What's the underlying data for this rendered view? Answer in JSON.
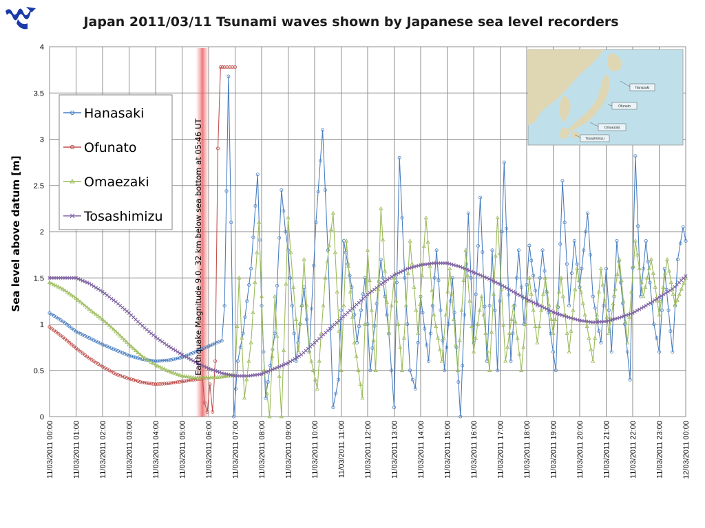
{
  "logo": {
    "icon": "wave-logo-icon",
    "color": "#1a3aa8"
  },
  "chart_data": {
    "type": "line",
    "title": "Japan 2011/03/11 Tsunami waves shown by Japanese sea level recorders",
    "ylabel": "Sea level above datum [m]",
    "xlabel": "",
    "ylim": [
      0,
      4
    ],
    "yticks": [
      "0",
      "0.5",
      "1",
      "1.5",
      "2",
      "2.5",
      "3",
      "3.5",
      "4"
    ],
    "xticks": [
      "11/03/2011 00:00",
      "11/03/2011 01:00",
      "11/03/2011 02:00",
      "11/03/2011 03:00",
      "11/03/2011 04:00",
      "11/03/2011 05:00",
      "11/03/2011 06:00",
      "11/03/2011 07:00",
      "11/03/2011 08:00",
      "11/03/2011 09:00",
      "11/03/2011 10:00",
      "11/03/2011 11:00",
      "11/03/2011 12:00",
      "11/03/2011 13:00",
      "11/03/2011 14:00",
      "11/03/2011 15:00",
      "11/03/2011 16:00",
      "11/03/2011 17:00",
      "11/03/2011 18:00",
      "11/03/2011 19:00",
      "11/03/2011 20:00",
      "11/03/2011 21:00",
      "11/03/2011 22:00",
      "11/03/2011 23:00",
      "12/03/2011 00:00"
    ],
    "x_unit": "hours since 11/03/2011 00:00",
    "grid": true,
    "legend_position": "upper-left",
    "annotation": {
      "text": "Earthquake Magnitude 9.0, 32 km below sea bottom at 05:46 UT",
      "x_hour": 5.77
    },
    "series": [
      {
        "name": "Hanasaki",
        "color": "#4a7fc1",
        "marker": "circle",
        "points": [
          [
            0,
            1.12
          ],
          [
            0.5,
            1.03
          ],
          [
            1,
            0.92
          ],
          [
            1.5,
            0.85
          ],
          [
            2,
            0.78
          ],
          [
            2.5,
            0.72
          ],
          [
            3,
            0.66
          ],
          [
            3.5,
            0.62
          ],
          [
            4,
            0.6
          ],
          [
            4.5,
            0.61
          ],
          [
            5,
            0.64
          ],
          [
            5.5,
            0.7
          ],
          [
            6,
            0.76
          ],
          [
            6.3,
            0.8
          ],
          [
            6.5,
            0.82
          ],
          [
            6.6,
            1.2
          ],
          [
            6.75,
            3.68
          ],
          [
            6.85,
            2.1
          ],
          [
            6.95,
            0.0
          ],
          [
            7.1,
            0.6
          ],
          [
            7.3,
            0.9
          ],
          [
            7.6,
            1.6
          ],
          [
            7.85,
            2.62
          ],
          [
            8.0,
            1.2
          ],
          [
            8.15,
            0.2
          ],
          [
            8.5,
            0.9
          ],
          [
            8.75,
            2.45
          ],
          [
            8.9,
            2.0
          ],
          [
            9.0,
            1.8
          ],
          [
            9.3,
            0.6
          ],
          [
            9.6,
            1.4
          ],
          [
            9.8,
            0.7
          ],
          [
            10.05,
            2.1
          ],
          [
            10.3,
            3.1
          ],
          [
            10.5,
            1.8
          ],
          [
            10.7,
            0.1
          ],
          [
            10.9,
            0.4
          ],
          [
            11.1,
            1.9
          ],
          [
            11.4,
            1.4
          ],
          [
            11.6,
            0.8
          ],
          [
            11.9,
            1.5
          ],
          [
            12.1,
            0.5
          ],
          [
            12.5,
            1.7
          ],
          [
            12.8,
            0.9
          ],
          [
            13.0,
            0.1
          ],
          [
            13.2,
            2.8
          ],
          [
            13.4,
            1.5
          ],
          [
            13.6,
            0.5
          ],
          [
            13.8,
            0.3
          ],
          [
            14.0,
            1.3
          ],
          [
            14.3,
            0.6
          ],
          [
            14.6,
            1.8
          ],
          [
            14.9,
            0.5
          ],
          [
            15.2,
            1.5
          ],
          [
            15.5,
            0.0
          ],
          [
            15.8,
            2.2
          ],
          [
            16.0,
            0.8
          ],
          [
            16.25,
            2.37
          ],
          [
            16.5,
            0.6
          ],
          [
            16.7,
            1.8
          ],
          [
            16.9,
            0.5
          ],
          [
            17.15,
            2.75
          ],
          [
            17.4,
            0.6
          ],
          [
            17.7,
            1.8
          ],
          [
            17.9,
            1.0
          ],
          [
            18.1,
            1.85
          ],
          [
            18.4,
            1.2
          ],
          [
            18.6,
            1.8
          ],
          [
            18.9,
            0.9
          ],
          [
            19.1,
            0.5
          ],
          [
            19.35,
            2.55
          ],
          [
            19.6,
            1.2
          ],
          [
            19.8,
            1.9
          ],
          [
            20.0,
            1.4
          ],
          [
            20.3,
            2.2
          ],
          [
            20.5,
            1.3
          ],
          [
            20.8,
            0.8
          ],
          [
            21.0,
            1.6
          ],
          [
            21.2,
            0.7
          ],
          [
            21.4,
            1.9
          ],
          [
            21.7,
            1.0
          ],
          [
            21.9,
            0.4
          ],
          [
            22.1,
            2.82
          ],
          [
            22.3,
            1.3
          ],
          [
            22.5,
            1.9
          ],
          [
            22.8,
            1.0
          ],
          [
            23.0,
            0.7
          ],
          [
            23.2,
            1.6
          ],
          [
            23.5,
            0.7
          ],
          [
            23.7,
            1.7
          ],
          [
            23.9,
            2.05
          ],
          [
            24.0,
            1.9
          ]
        ]
      },
      {
        "name": "Ofunato",
        "color": "#c0504d",
        "marker": "circle",
        "points": [
          [
            0,
            0.97
          ],
          [
            0.5,
            0.86
          ],
          [
            1,
            0.74
          ],
          [
            1.5,
            0.63
          ],
          [
            2,
            0.54
          ],
          [
            2.5,
            0.46
          ],
          [
            3,
            0.41
          ],
          [
            3.5,
            0.37
          ],
          [
            4,
            0.35
          ],
          [
            4.5,
            0.36
          ],
          [
            5,
            0.38
          ],
          [
            5.5,
            0.4
          ],
          [
            5.77,
            0.41
          ],
          [
            5.85,
            0.15
          ],
          [
            5.95,
            0.05
          ],
          [
            6.05,
            0.35
          ],
          [
            6.15,
            0.05
          ],
          [
            6.25,
            0.6
          ],
          [
            6.35,
            2.9
          ],
          [
            6.45,
            3.78
          ],
          [
            6.6,
            3.78
          ],
          [
            6.8,
            3.78
          ],
          [
            7.0,
            3.78
          ]
        ]
      },
      {
        "name": "Omaezaki",
        "color": "#9bbb59",
        "marker": "triangle",
        "points": [
          [
            0,
            1.45
          ],
          [
            0.5,
            1.38
          ],
          [
            1,
            1.28
          ],
          [
            1.5,
            1.16
          ],
          [
            2,
            1.05
          ],
          [
            2.5,
            0.92
          ],
          [
            3,
            0.78
          ],
          [
            3.5,
            0.65
          ],
          [
            4,
            0.56
          ],
          [
            4.5,
            0.49
          ],
          [
            5,
            0.44
          ],
          [
            5.5,
            0.42
          ],
          [
            6,
            0.42
          ],
          [
            6.5,
            0.43
          ],
          [
            7,
            0.45
          ],
          [
            7.15,
            1.5
          ],
          [
            7.35,
            0.2
          ],
          [
            7.6,
            0.8
          ],
          [
            7.9,
            2.1
          ],
          [
            8.1,
            0.5
          ],
          [
            8.3,
            0.0
          ],
          [
            8.5,
            1.3
          ],
          [
            8.75,
            0.0
          ],
          [
            9.0,
            2.15
          ],
          [
            9.2,
            1.4
          ],
          [
            9.4,
            0.7
          ],
          [
            9.6,
            1.7
          ],
          [
            9.8,
            0.7
          ],
          [
            10.1,
            0.3
          ],
          [
            10.4,
            1.5
          ],
          [
            10.7,
            2.2
          ],
          [
            11.0,
            0.5
          ],
          [
            11.2,
            1.9
          ],
          [
            11.5,
            0.8
          ],
          [
            11.8,
            0.2
          ],
          [
            12.0,
            1.8
          ],
          [
            12.3,
            0.5
          ],
          [
            12.5,
            2.25
          ],
          [
            12.8,
            0.9
          ],
          [
            13.0,
            1.5
          ],
          [
            13.3,
            0.5
          ],
          [
            13.6,
            1.9
          ],
          [
            13.9,
            0.9
          ],
          [
            14.2,
            2.15
          ],
          [
            14.5,
            1.1
          ],
          [
            14.8,
            0.6
          ],
          [
            15.1,
            1.6
          ],
          [
            15.4,
            0.5
          ],
          [
            15.7,
            1.8
          ],
          [
            16.0,
            0.7
          ],
          [
            16.3,
            1.3
          ],
          [
            16.6,
            0.5
          ],
          [
            16.9,
            2.15
          ],
          [
            17.2,
            0.6
          ],
          [
            17.5,
            1.2
          ],
          [
            17.8,
            0.5
          ],
          [
            18.1,
            1.5
          ],
          [
            18.4,
            0.8
          ],
          [
            18.7,
            1.5
          ],
          [
            19.0,
            0.9
          ],
          [
            19.3,
            1.5
          ],
          [
            19.6,
            0.7
          ],
          [
            19.9,
            1.6
          ],
          [
            20.2,
            1.1
          ],
          [
            20.5,
            0.6
          ],
          [
            20.8,
            1.6
          ],
          [
            21.1,
            0.9
          ],
          [
            21.5,
            1.7
          ],
          [
            21.8,
            0.8
          ],
          [
            22.1,
            1.9
          ],
          [
            22.4,
            1.3
          ],
          [
            22.7,
            1.7
          ],
          [
            23.0,
            1.1
          ],
          [
            23.3,
            1.7
          ],
          [
            23.6,
            1.2
          ],
          [
            24.0,
            1.5
          ]
        ]
      },
      {
        "name": "Tosashimizu",
        "color": "#8064a2",
        "marker": "x",
        "points": [
          [
            0,
            1.5
          ],
          [
            0.5,
            1.5
          ],
          [
            1,
            1.5
          ],
          [
            1.5,
            1.44
          ],
          [
            2,
            1.35
          ],
          [
            2.5,
            1.24
          ],
          [
            3,
            1.12
          ],
          [
            3.5,
            0.98
          ],
          [
            4,
            0.86
          ],
          [
            4.5,
            0.76
          ],
          [
            5,
            0.67
          ],
          [
            5.5,
            0.59
          ],
          [
            6,
            0.52
          ],
          [
            6.5,
            0.47
          ],
          [
            7,
            0.44
          ],
          [
            7.5,
            0.44
          ],
          [
            8,
            0.46
          ],
          [
            8.5,
            0.52
          ],
          [
            9,
            0.58
          ],
          [
            9.5,
            0.67
          ],
          [
            10,
            0.8
          ],
          [
            10.5,
            0.93
          ],
          [
            11,
            1.06
          ],
          [
            11.5,
            1.19
          ],
          [
            12,
            1.32
          ],
          [
            12.5,
            1.43
          ],
          [
            13,
            1.53
          ],
          [
            13.5,
            1.6
          ],
          [
            14,
            1.64
          ],
          [
            14.5,
            1.66
          ],
          [
            15,
            1.66
          ],
          [
            15.5,
            1.62
          ],
          [
            16,
            1.56
          ],
          [
            16.5,
            1.5
          ],
          [
            17,
            1.43
          ],
          [
            17.5,
            1.35
          ],
          [
            18,
            1.27
          ],
          [
            18.5,
            1.2
          ],
          [
            19,
            1.13
          ],
          [
            19.5,
            1.08
          ],
          [
            20,
            1.04
          ],
          [
            20.5,
            1.02
          ],
          [
            21,
            1.03
          ],
          [
            21.5,
            1.07
          ],
          [
            22,
            1.12
          ],
          [
            22.5,
            1.2
          ],
          [
            23,
            1.29
          ],
          [
            23.5,
            1.38
          ],
          [
            24,
            1.52
          ]
        ]
      }
    ]
  },
  "inset_map": {
    "sea_color": "#bfe0ea",
    "land_color": "#dfd6b4",
    "labels": [
      "Hanasaki",
      "Ofunato",
      "Omaezaki",
      "Tosashimizu"
    ]
  }
}
